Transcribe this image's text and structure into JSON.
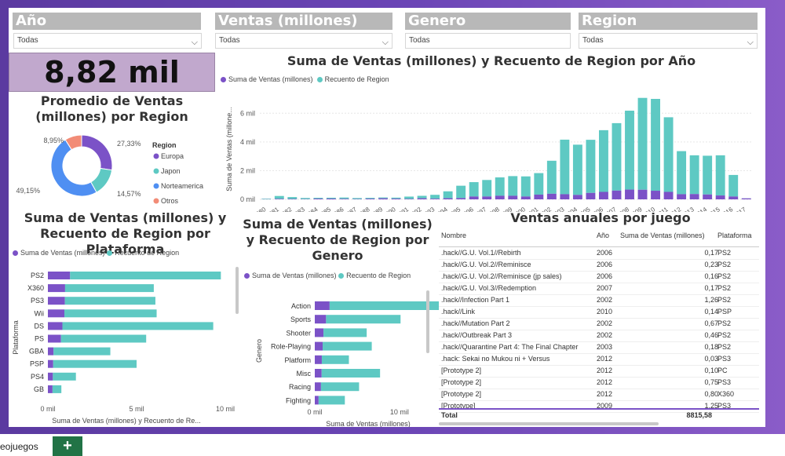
{
  "slicers": [
    {
      "label": "Año",
      "value": "Todas"
    },
    {
      "label": "Ventas (millones)",
      "value": "Todas"
    },
    {
      "label": "Genero",
      "value": "Todas"
    },
    {
      "label": "Region",
      "value": "Todas"
    }
  ],
  "kpi": {
    "value": "8,82 mil"
  },
  "donut": {
    "title": "Promedio de Ventas (millones) por Region",
    "legend_title": "Region",
    "slices": [
      {
        "name": "Europa",
        "label": "27,33%",
        "value": 27.33,
        "color": "#7b52c7"
      },
      {
        "name": "Japon",
        "label": "14,57%",
        "value": 14.57,
        "color": "#5ec9c3"
      },
      {
        "name": "Norteamerica",
        "label": "49,15%",
        "value": 49.15,
        "color": "#4f8ff2"
      },
      {
        "name": "Otros",
        "label": "8,95%",
        "value": 8.95,
        "color": "#f28c77"
      }
    ]
  },
  "year_chart": {
    "title": "Suma de Ventas (millones) y Recuento de Region por Año",
    "legend": [
      "Suma de Ventas (millones)",
      "Recuento de Region"
    ],
    "ylabel": "Suma de Ventas (millone...",
    "yticks": [
      "0 mil",
      "2 mil",
      "4 mil",
      "6 mil"
    ]
  },
  "platform_chart": {
    "title": "Suma de Ventas (millones) y Recuento de Region por Plataforma",
    "legend": [
      "Suma de Ventas (millones)",
      "Recuento de Region"
    ],
    "ylabel": "Plataforma",
    "xlabel": "Suma de Ventas (millones) y Recuento de Re...",
    "xticks": [
      "0 mil",
      "5 mil",
      "10 mil"
    ]
  },
  "genre_chart": {
    "title": "Suma de Ventas (millones) y Recuento de Region por Genero",
    "legend": [
      "Suma de Ventas (millones)",
      "Recuento de Region"
    ],
    "ylabel": "Genero",
    "xlabel": "Suma de Ventas (millones)",
    "xticks": [
      "0 mil",
      "10 mil"
    ]
  },
  "table": {
    "title": "Ventas anuales por juego",
    "headers": [
      "Nombre",
      "Año",
      "Suma de Ventas (millones)",
      "Plataforma"
    ],
    "rows": [
      [
        ".hack//G.U. Vol.1//Rebirth",
        "2006",
        "0,17",
        "PS2"
      ],
      [
        ".hack//G.U. Vol.2//Reminisce",
        "2006",
        "0,23",
        "PS2"
      ],
      [
        ".hack//G.U. Vol.2//Reminisce (jp sales)",
        "2006",
        "0,16",
        "PS2"
      ],
      [
        ".hack//G.U. Vol.3//Redemption",
        "2007",
        "0,17",
        "PS2"
      ],
      [
        ".hack//Infection Part 1",
        "2002",
        "1,26",
        "PS2"
      ],
      [
        ".hack//Link",
        "2010",
        "0,14",
        "PSP"
      ],
      [
        ".hack//Mutation Part 2",
        "2002",
        "0,67",
        "PS2"
      ],
      [
        ".hack//Outbreak Part 3",
        "2002",
        "0,46",
        "PS2"
      ],
      [
        ".hack//Quarantine Part 4: The Final Chapter",
        "2003",
        "0,18",
        "PS2"
      ],
      [
        ".hack: Sekai no Mukou ni + Versus",
        "2012",
        "0,03",
        "PS3"
      ],
      [
        "[Prototype 2]",
        "2012",
        "0,10",
        "PC"
      ],
      [
        "[Prototype 2]",
        "2012",
        "0,75",
        "PS3"
      ],
      [
        "[Prototype 2]",
        "2012",
        "0,80",
        "X360"
      ],
      [
        "[Prototype]",
        "2009",
        "1,25",
        "PS3"
      ]
    ],
    "total_label": "Total",
    "total_value": "8815,58"
  },
  "sheet_tab": "eojuegos",
  "add_tab": "+",
  "chart_data": [
    {
      "type": "bar",
      "title": "Suma de Ventas (millones) y Recuento de Region por Año",
      "categories": [
        "1980",
        "1981",
        "1982",
        "1983",
        "1984",
        "1985",
        "1986",
        "1987",
        "1988",
        "1989",
        "1990",
        "1991",
        "1992",
        "1993",
        "1994",
        "1995",
        "1996",
        "1997",
        "1998",
        "1999",
        "2000",
        "2001",
        "2002",
        "2003",
        "2004",
        "2005",
        "2006",
        "2007",
        "2008",
        "2009",
        "2010",
        "2011",
        "2012",
        "2013",
        "2014",
        "2015",
        "2016",
        "2017"
      ],
      "series": [
        {
          "name": "Suma de Ventas (millones)",
          "values": [
            10,
            35,
            29,
            17,
            50,
            54,
            37,
            22,
            47,
            73,
            50,
            32,
            76,
            46,
            79,
            90,
            200,
            200,
            250,
            250,
            200,
            330,
            390,
            360,
            310,
            450,
            520,
            610,
            680,
            670,
            600,
            520,
            360,
            370,
            340,
            270,
            200,
            70
          ]
        },
        {
          "name": "Recuento de Region",
          "values": [
            40,
            200,
            130,
            80,
            60,
            60,
            90,
            70,
            60,
            60,
            70,
            160,
            170,
            270,
            480,
            860,
            1000,
            1150,
            1280,
            1370,
            1400,
            1500,
            2300,
            3800,
            3500,
            3700,
            4300,
            4700,
            5500,
            6400,
            6400,
            5200,
            3000,
            2700,
            2700,
            2800,
            1500,
            10
          ]
        }
      ],
      "ylabel": "Suma de Ventas (millone...",
      "ylim": [
        0,
        7000
      ]
    },
    {
      "type": "bar",
      "title": "Suma de Ventas (millones) y Recuento de Region por Plataforma",
      "categories": [
        "PS2",
        "X360",
        "PS3",
        "Wii",
        "DS",
        "PS",
        "GBA",
        "PSP",
        "PS4",
        "GB"
      ],
      "series": [
        {
          "name": "Suma de Ventas (millones)",
          "values": [
            1250,
            970,
            960,
            930,
            820,
            740,
            320,
            300,
            280,
            260
          ]
        },
        {
          "name": "Recuento de Region",
          "values": [
            8500,
            5000,
            5100,
            5200,
            8500,
            4800,
            3200,
            4700,
            1300,
            500
          ]
        }
      ],
      "ylabel": "Plataforma",
      "xlim": [
        0,
        10000
      ]
    },
    {
      "type": "bar",
      "title": "Suma de Ventas (millones) y Recuento de Region por Genero",
      "categories": [
        "Action",
        "Sports",
        "Shooter",
        "Role-Playing",
        "Platform",
        "Misc",
        "Racing",
        "Fighting"
      ],
      "series": [
        {
          "name": "Suma de Ventas (millones)",
          "values": [
            1750,
            1330,
            1030,
            930,
            830,
            810,
            730,
            450
          ]
        },
        {
          "name": "Recuento de Region",
          "values": [
            13000,
            8800,
            5100,
            5800,
            3200,
            6900,
            4500,
            3100
          ]
        }
      ],
      "xlabel": "Suma de Ventas (millones)",
      "ylabel": "Genero",
      "xlim": [
        0,
        14000
      ]
    },
    {
      "type": "pie",
      "title": "Promedio de Ventas (millones) por Region",
      "categories": [
        "Europa",
        "Japon",
        "Norteamerica",
        "Otros"
      ],
      "values": [
        27.33,
        14.57,
        49.15,
        8.95
      ]
    }
  ]
}
